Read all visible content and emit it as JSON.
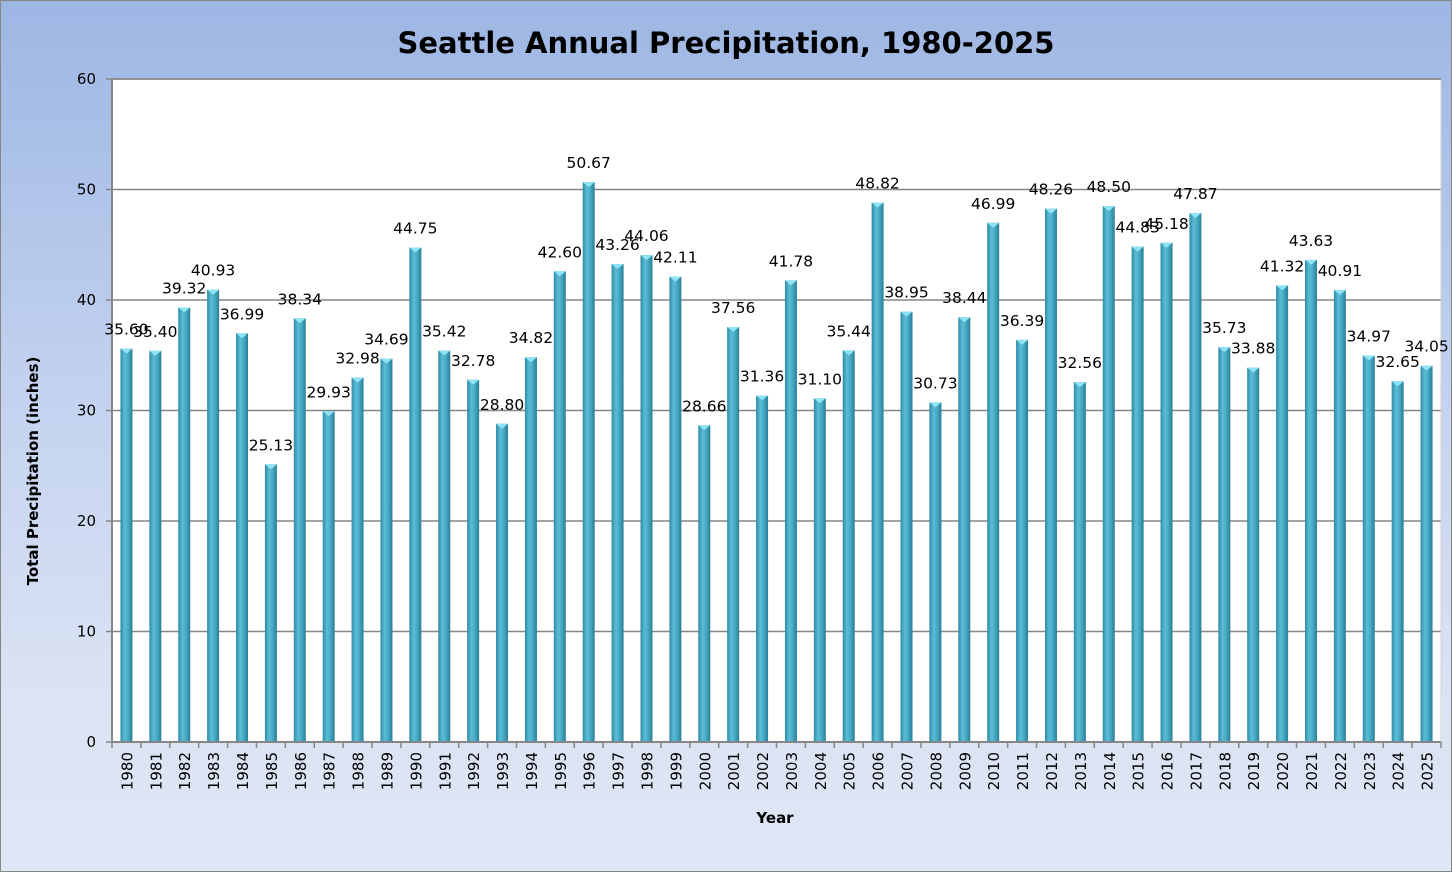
{
  "chart_data": {
    "type": "bar",
    "title": "Seattle Annual Precipitation, 1980-2025",
    "xlabel": "Year",
    "ylabel": "Total Precipitation (inches)",
    "ylim": [
      0,
      60
    ],
    "yticks": [
      0,
      10,
      20,
      30,
      40,
      50,
      60
    ],
    "grid": true,
    "legend": "none",
    "bar_color": "#4bacc6",
    "categories": [
      "1980",
      "1981",
      "1982",
      "1983",
      "1984",
      "1985",
      "1986",
      "1987",
      "1988",
      "1989",
      "1990",
      "1991",
      "1992",
      "1993",
      "1994",
      "1995",
      "1996",
      "1997",
      "1998",
      "1999",
      "2000",
      "2001",
      "2002",
      "2003",
      "2004",
      "2005",
      "2006",
      "2007",
      "2008",
      "2009",
      "2010",
      "2011",
      "2012",
      "2013",
      "2014",
      "2015",
      "2016",
      "2017",
      "2018",
      "2019",
      "2020",
      "2021",
      "2022",
      "2023",
      "2024",
      "2025"
    ],
    "values": [
      35.6,
      35.4,
      39.32,
      40.93,
      36.99,
      25.13,
      38.34,
      29.93,
      32.98,
      34.69,
      44.75,
      35.42,
      32.78,
      28.8,
      34.82,
      42.6,
      50.67,
      43.26,
      44.06,
      42.11,
      28.66,
      37.56,
      31.36,
      41.78,
      31.1,
      35.44,
      48.82,
      38.95,
      30.73,
      38.44,
      46.99,
      36.39,
      48.26,
      32.56,
      48.5,
      44.83,
      45.18,
      47.87,
      35.73,
      33.88,
      41.32,
      43.63,
      40.91,
      34.97,
      32.65,
      34.05
    ],
    "data_labels": [
      "35.60",
      "35.40",
      "39.32",
      "40.93",
      "36.99",
      "25.13",
      "38.34",
      "29.93",
      "32.98",
      "34.69",
      "44.75",
      "35.42",
      "32.78",
      "28.80",
      "34.82",
      "42.60",
      "50.67",
      "43.26",
      "44.06",
      "42.11",
      "28.66",
      "37.56",
      "31.36",
      "41.78",
      "31.10",
      "35.44",
      "48.82",
      "38.95",
      "30.73",
      "38.44",
      "46.99",
      "36.39",
      "48.26",
      "32.56",
      "48.50",
      "44.83",
      "45.18",
      "47.87",
      "35.73",
      "33.88",
      "41.32",
      "43.63",
      "40.91",
      "34.97",
      "32.65",
      "34.05"
    ]
  }
}
